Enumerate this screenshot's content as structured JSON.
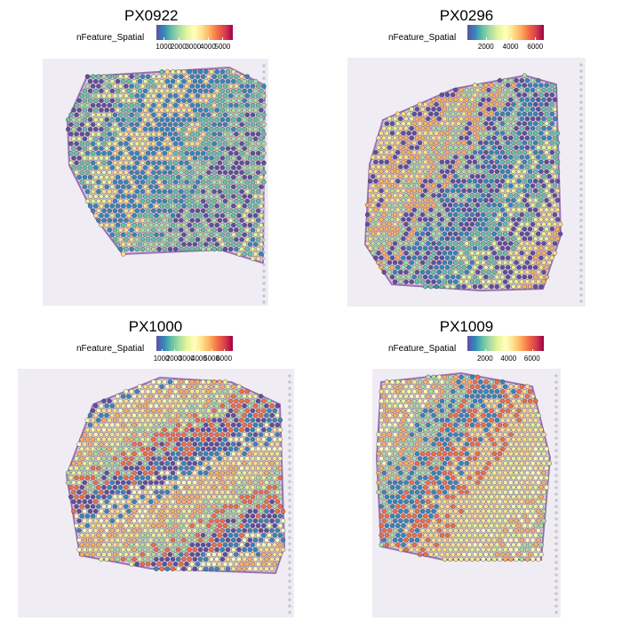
{
  "legend_title": "nFeature_Spatial",
  "colorscale": [
    "#5e4fa2",
    "#3288bd",
    "#66c2a5",
    "#abdda4",
    "#e6f598",
    "#ffffbf",
    "#fee08b",
    "#fdae61",
    "#f46d43",
    "#d53e4f",
    "#9e0142"
  ],
  "panels": [
    {
      "title": "PX0922",
      "ticks": [
        "1000",
        "2000",
        "3000",
        "4000",
        "5000"
      ],
      "tick_values": [
        1000,
        2000,
        3000,
        4000,
        5000
      ],
      "range": [
        500,
        5700
      ]
    },
    {
      "title": "PX0296",
      "ticks": [
        "2000",
        "4000",
        "6000"
      ],
      "tick_values": [
        2000,
        4000,
        6000
      ],
      "range": [
        500,
        6700
      ]
    },
    {
      "title": "PX1000",
      "ticks": [
        "1000",
        "2000",
        "3000",
        "4000",
        "5000",
        "6000"
      ],
      "tick_values": [
        1000,
        2000,
        3000,
        4000,
        5000,
        6000
      ],
      "range": [
        600,
        6700
      ]
    },
    {
      "title": "PX1009",
      "ticks": [
        "2000",
        "4000",
        "6000"
      ],
      "tick_values": [
        2000,
        4000,
        6000
      ],
      "range": [
        500,
        7000
      ]
    }
  ]
}
